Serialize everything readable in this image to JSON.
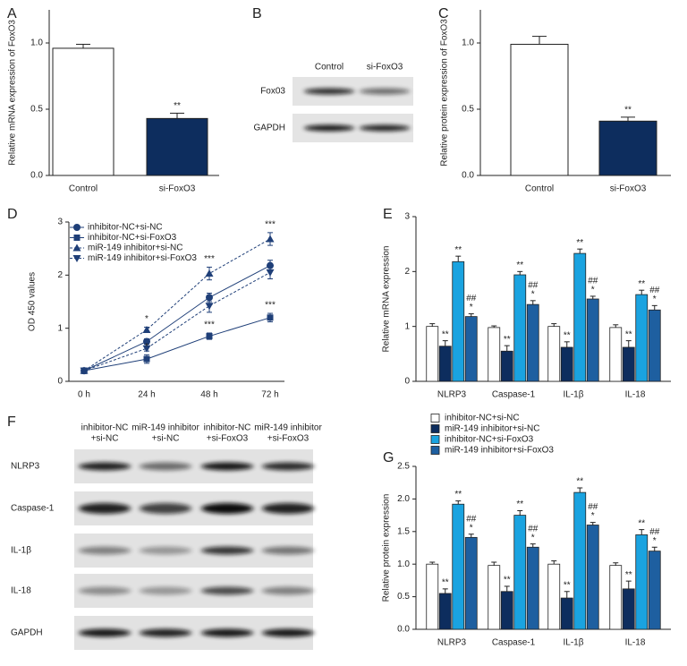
{
  "chart_data": [
    {
      "type": "bar",
      "panel": "A",
      "ylabel": "Relative mRNA expression of FoxO3",
      "categories": [
        "Control",
        "si-FoxO3"
      ],
      "values": [
        0.96,
        0.43
      ],
      "errors": [
        0.03,
        0.04
      ],
      "colors": [
        "#ffffff",
        "#0d2d5e"
      ],
      "ylim": [
        0,
        1.25
      ],
      "yticks": [
        {
          "value": 0,
          "label": "0.0"
        },
        {
          "value": 0.5,
          "label": "0.5"
        },
        {
          "value": 1,
          "label": "1.0"
        }
      ],
      "annotations": [
        {
          "index": 1,
          "text": "**"
        }
      ]
    },
    {
      "type": "bar",
      "panel": "C",
      "ylabel": "Relative protein expression of FoxO3",
      "categories": [
        "Control",
        "si-FoxO3"
      ],
      "values": [
        0.99,
        0.41
      ],
      "errors": [
        0.06,
        0.03
      ],
      "colors": [
        "#ffffff",
        "#0d2d5e"
      ],
      "ylim": [
        0,
        1.25
      ],
      "yticks": [
        {
          "value": 0,
          "label": "0.0"
        },
        {
          "value": 0.5,
          "label": "0.5"
        },
        {
          "value": 1,
          "label": "1.0"
        }
      ],
      "annotations": [
        {
          "index": 1,
          "text": "**"
        }
      ]
    },
    {
      "type": "line",
      "panel": "D",
      "ylabel": "OD 450 values",
      "categories": [
        "0 h",
        "24 h",
        "48 h",
        "72 h"
      ],
      "ylim": [
        0,
        3
      ],
      "yticks": [
        0,
        1,
        2,
        3
      ],
      "legend": "upper left",
      "series": [
        {
          "name": "inhibitor-NC+si-NC",
          "color": "#1f3f78",
          "marker": "circle",
          "dashed": false,
          "values": [
            0.2,
            0.75,
            1.58,
            2.18
          ],
          "errors": [
            0.05,
            0.05,
            0.08,
            0.1
          ]
        },
        {
          "name": "inhibitor-NC+si-FoxO3",
          "color": "#1f3f78",
          "marker": "square",
          "dashed": false,
          "values": [
            0.2,
            0.42,
            0.85,
            1.2
          ],
          "errors": [
            0.05,
            0.08,
            0.06,
            0.08
          ]
        },
        {
          "name": "miR-149 inhibitor+si-NC",
          "color": "#1f3f78",
          "marker": "triangle-up",
          "dashed": true,
          "values": [
            0.2,
            0.97,
            2.03,
            2.68
          ],
          "errors": [
            0.05,
            0.05,
            0.12,
            0.12
          ]
        },
        {
          "name": "miR-149 inhibitor+si-FoxO3",
          "color": "#1f3f78",
          "marker": "triangle-down",
          "dashed": true,
          "values": [
            0.2,
            0.62,
            1.42,
            2.05
          ],
          "errors": [
            0.05,
            0.05,
            0.12,
            0.12
          ]
        }
      ],
      "annotations": [
        {
          "series": 2,
          "index": 1,
          "text": "*"
        },
        {
          "series": 1,
          "index": 1,
          "text": "*"
        },
        {
          "series": 2,
          "index": 2,
          "text": "***"
        },
        {
          "series": 1,
          "index": 2,
          "text": "***"
        },
        {
          "series": 2,
          "index": 3,
          "text": "***"
        },
        {
          "series": 1,
          "index": 3,
          "text": "***"
        }
      ]
    },
    {
      "type": "grouped_bar",
      "panel": "E",
      "ylabel": "Relative mRNA expression",
      "categories": [
        "NLRP3",
        "Caspase-1",
        "IL-1β",
        "IL-18"
      ],
      "ylim": [
        0,
        3
      ],
      "yticks": [
        0,
        1,
        2,
        3
      ],
      "series": [
        {
          "color": "#ffffff",
          "values": [
            1.0,
            0.98,
            1.0,
            0.98
          ],
          "errors": [
            0.05,
            0.03,
            0.05,
            0.05
          ]
        },
        {
          "color": "#0d2d5e",
          "values": [
            0.64,
            0.55,
            0.62,
            0.62
          ],
          "errors": [
            0.1,
            0.1,
            0.1,
            0.12
          ],
          "annotations": [
            "**",
            "**",
            "**",
            "**"
          ]
        },
        {
          "color": "#1aa3e0",
          "values": [
            2.18,
            1.94,
            2.33,
            1.58
          ],
          "errors": [
            0.1,
            0.06,
            0.08,
            0.08
          ],
          "annotations": [
            "**",
            "**",
            "**",
            "**"
          ]
        },
        {
          "color": "#1e5fa0",
          "values": [
            1.18,
            1.4,
            1.5,
            1.3
          ],
          "errors": [
            0.05,
            0.07,
            0.05,
            0.08
          ],
          "annotations": [
            "*",
            "*",
            "*",
            "*"
          ],
          "annotations_upper": [
            "##",
            "##",
            "##",
            "##"
          ]
        }
      ]
    },
    {
      "type": "grouped_bar",
      "panel": "G",
      "ylabel": "Relative protein expression",
      "categories": [
        "NLRP3",
        "Caspase-1",
        "IL-1β",
        "IL-18"
      ],
      "ylim": [
        0,
        2.5
      ],
      "legend": "above",
      "yticks": [
        {
          "value": 0,
          "label": "0.0"
        },
        {
          "value": 0.5,
          "label": "0.5"
        },
        {
          "value": 1,
          "label": "1.0"
        },
        {
          "value": 1.5,
          "label": "1.5"
        },
        {
          "value": 2,
          "label": "2.0"
        },
        {
          "value": 2.5,
          "label": "2.5"
        }
      ],
      "series": [
        {
          "name": "inhibitor-NC+si-NC",
          "color": "#ffffff",
          "values": [
            1.0,
            0.98,
            1.0,
            0.98
          ],
          "errors": [
            0.03,
            0.05,
            0.05,
            0.04
          ]
        },
        {
          "name": "miR-149 inhibitor+si-NC",
          "color": "#0d2d5e",
          "values": [
            0.55,
            0.58,
            0.48,
            0.62
          ],
          "errors": [
            0.07,
            0.08,
            0.1,
            0.12
          ],
          "annotations": [
            "**",
            "**",
            "**",
            "**"
          ]
        },
        {
          "name": "inhibitor-NC+si-FoxO3",
          "color": "#1aa3e0",
          "values": [
            1.92,
            1.75,
            2.1,
            1.45
          ],
          "errors": [
            0.05,
            0.07,
            0.07,
            0.08
          ],
          "annotations": [
            "**",
            "**",
            "**",
            "**"
          ]
        },
        {
          "name": "miR-149 inhibitor+si-FoxO3",
          "color": "#1e5fa0",
          "values": [
            1.41,
            1.26,
            1.6,
            1.2
          ],
          "errors": [
            0.05,
            0.05,
            0.04,
            0.06
          ],
          "annotations": [
            "*",
            "*",
            "*",
            "*"
          ],
          "annotations_upper": [
            "##",
            "##",
            "##",
            "##"
          ]
        }
      ]
    }
  ],
  "blots": {
    "B": {
      "panel": "B",
      "columns": [
        "Control",
        "si-FoxO3"
      ],
      "rows": [
        "Fox03",
        "GAPDH"
      ]
    },
    "F": {
      "panel": "F",
      "columns": [
        [
          "inhibitor-NC",
          "+si-NC"
        ],
        [
          "miR-149 inhibitor",
          "+si-NC"
        ],
        [
          "inhibitor-NC",
          "+si-FoxO3"
        ],
        [
          "miR-149 inhibitor",
          "+si-FoxO3"
        ]
      ],
      "rows": [
        "NLRP3",
        "Caspase-1",
        "IL-1β",
        "IL-18",
        "GAPDH"
      ]
    }
  }
}
